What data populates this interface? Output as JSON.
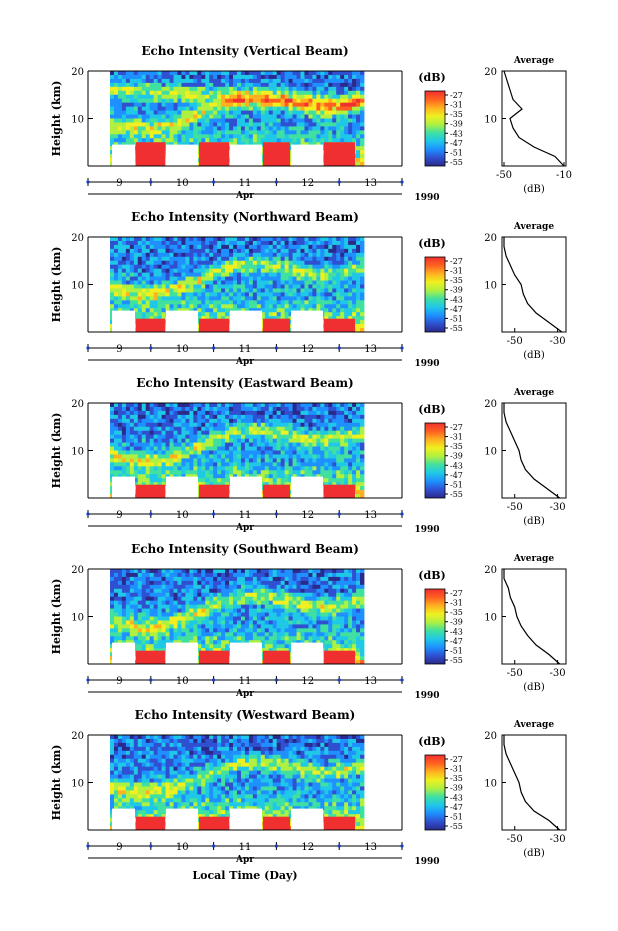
{
  "figure": {
    "xlabel": "Local Time (Day)",
    "year": "1990",
    "month": "Apr",
    "days": [
      "9",
      "10",
      "11",
      "12",
      "13"
    ],
    "colorbar_unit": "(dB)",
    "colorbar_ticks": [
      "-27",
      "-31",
      "-35",
      "-39",
      "-43",
      "-47",
      "-51",
      "-55"
    ],
    "avg_title": "Average",
    "avg_xlabel": "(dB)",
    "ylabel": "Height (km)",
    "yticks": [
      "20",
      "10"
    ],
    "colormap": [
      "#2a2a8c",
      "#2f50d0",
      "#1e90ff",
      "#20c8e8",
      "#40e0a0",
      "#b0f040",
      "#f0f020",
      "#ffb020",
      "#ff6020",
      "#f03030"
    ]
  },
  "chart_data": [
    {
      "type": "heatmap",
      "title": "Echo Intensity (Vertical Beam)",
      "ylim": [
        0,
        20
      ],
      "clim": [
        -55,
        -27
      ],
      "avg_xticks": [
        "-50",
        "-10"
      ],
      "avg_xlim": [
        -50,
        -10
      ],
      "average_profile": {
        "height_km": [
          0,
          2,
          4,
          6,
          8,
          10,
          12,
          14,
          16,
          18,
          20
        ],
        "dB": [
          -10,
          -16,
          -30,
          -40,
          -44,
          -46,
          -38,
          -44,
          -46,
          -48,
          -50
        ]
      }
    },
    {
      "type": "heatmap",
      "title": "Echo Intensity (Northward Beam)",
      "ylim": [
        0,
        20
      ],
      "clim": [
        -55,
        -27
      ],
      "avg_xticks": [
        "-50",
        "-30"
      ],
      "avg_xlim": [
        -55,
        -27
      ],
      "average_profile": {
        "height_km": [
          0,
          2,
          4,
          6,
          8,
          10,
          12,
          14,
          16,
          18,
          20
        ],
        "dB": [
          -28,
          -34,
          -40,
          -44,
          -46,
          -47,
          -50,
          -52,
          -54,
          -55,
          -55
        ]
      }
    },
    {
      "type": "heatmap",
      "title": "Echo Intensity (Eastward Beam)",
      "ylim": [
        0,
        20
      ],
      "clim": [
        -55,
        -27
      ],
      "avg_xticks": [
        "-50",
        "-30"
      ],
      "avg_xlim": [
        -55,
        -27
      ],
      "average_profile": {
        "height_km": [
          0,
          2,
          4,
          6,
          8,
          10,
          12,
          14,
          16,
          18,
          20
        ],
        "dB": [
          -29,
          -35,
          -41,
          -45,
          -47,
          -48,
          -50,
          -52,
          -54,
          -55,
          -55
        ]
      }
    },
    {
      "type": "heatmap",
      "title": "Echo Intensity (Southward Beam)",
      "ylim": [
        0,
        20
      ],
      "clim": [
        -55,
        -27
      ],
      "avg_xticks": [
        "-50",
        "-30"
      ],
      "avg_xlim": [
        -55,
        -27
      ],
      "average_profile": {
        "height_km": [
          0,
          2,
          4,
          6,
          8,
          10,
          12,
          14,
          16,
          18,
          20
        ],
        "dB": [
          -29,
          -34,
          -40,
          -44,
          -47,
          -49,
          -50,
          -52,
          -53,
          -55,
          -55
        ]
      }
    },
    {
      "type": "heatmap",
      "title": "Echo Intensity (Westward Beam)",
      "ylim": [
        0,
        20
      ],
      "clim": [
        -55,
        -27
      ],
      "avg_xticks": [
        "-50",
        "-30"
      ],
      "avg_xlim": [
        -55,
        -27
      ],
      "average_profile": {
        "height_km": [
          0,
          2,
          4,
          6,
          8,
          10,
          12,
          14,
          16,
          18,
          20
        ],
        "dB": [
          -29,
          -34,
          -41,
          -45,
          -47,
          -48,
          -50,
          -52,
          -54,
          -55,
          -55
        ]
      }
    }
  ]
}
